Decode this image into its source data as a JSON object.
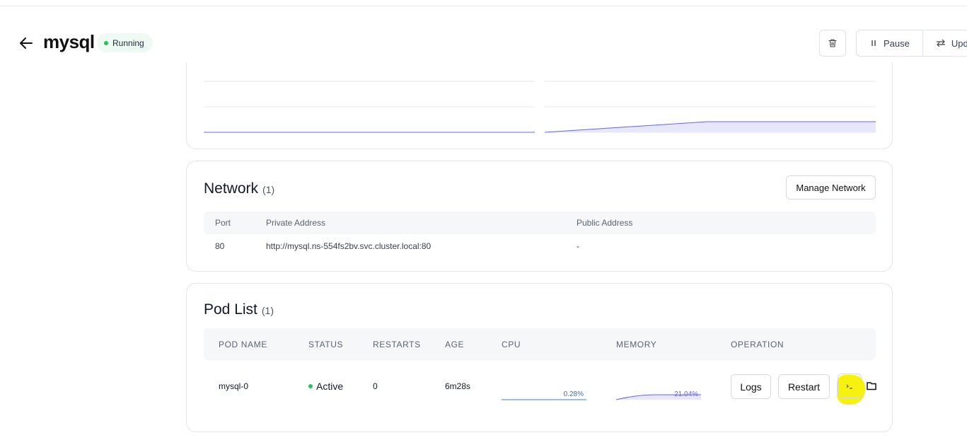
{
  "header": {
    "title": "mysql",
    "status": "Running",
    "actions": {
      "pause_label": "Pause",
      "update_label": "Update"
    }
  },
  "network": {
    "title": "Network",
    "count": "(1)",
    "manage_label": "Manage Network",
    "columns": [
      "Port",
      "Private Address",
      "Public Address"
    ],
    "rows": [
      {
        "port": "80",
        "private_address": "http://mysql.ns-554fs2bv.svc.cluster.local:80",
        "public_address": "-"
      }
    ]
  },
  "pods": {
    "title": "Pod List",
    "count": "(1)",
    "columns": [
      "POD NAME",
      "STATUS",
      "RESTARTS",
      "AGE",
      "CPU",
      "MEMORY",
      "OPERATION"
    ],
    "rows": [
      {
        "name": "mysql-0",
        "status": "Active",
        "restarts": "0",
        "age": "6m28s",
        "cpu": "0.28%",
        "memory": "21.04%",
        "logs_label": "Logs",
        "restart_label": "Restart"
      }
    ]
  },
  "colors": {
    "accent": "#6366f1",
    "running_green": "#22c55e",
    "highlight": "#f5f000"
  }
}
